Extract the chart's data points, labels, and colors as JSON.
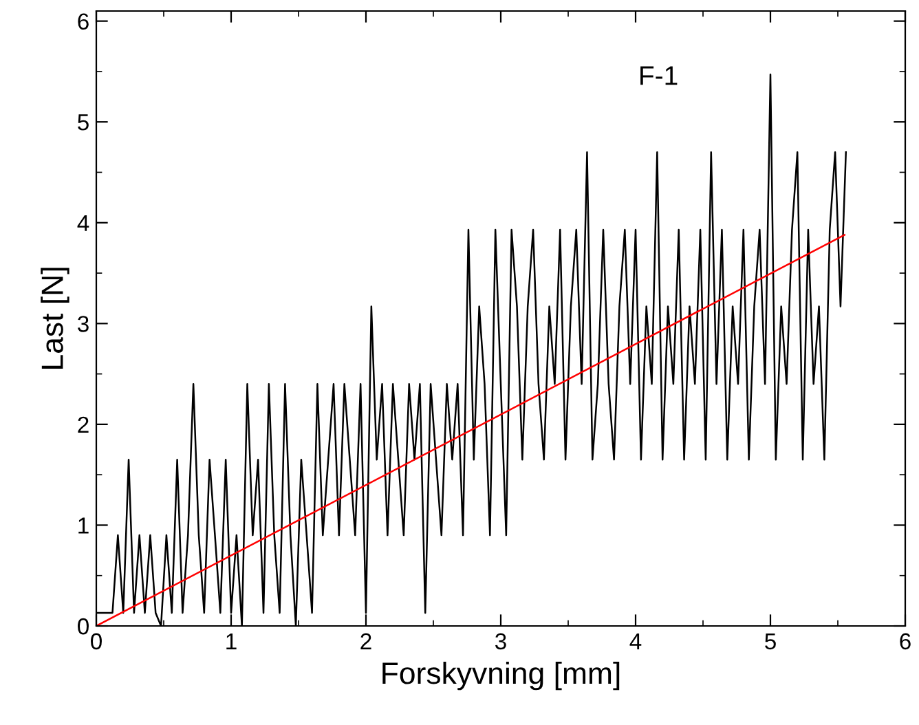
{
  "chart_data": {
    "type": "line",
    "xlabel": "Forskyvning [mm]",
    "ylabel": "Last [N]",
    "annotations": [
      "F-1"
    ],
    "xlim": [
      0,
      6
    ],
    "ylim": [
      0,
      6.1
    ],
    "xticks": [
      0,
      1,
      2,
      3,
      4,
      5,
      6
    ],
    "yticks": [
      0,
      1,
      2,
      3,
      4,
      5,
      6
    ],
    "grid": false,
    "legend": false,
    "marker": "none",
    "line_style": "solid",
    "series": [
      {
        "color": "#000000",
        "x": [
          0,
          0.04,
          0.08,
          0.12,
          0.16,
          0.2,
          0.24,
          0.28,
          0.32,
          0.36,
          0.4,
          0.44,
          0.48,
          0.52,
          0.56,
          0.6,
          0.64,
          0.68,
          0.72,
          0.76,
          0.8,
          0.84,
          0.88,
          0.92,
          0.96,
          1.0,
          1.04,
          1.08,
          1.12,
          1.16,
          1.2,
          1.24,
          1.28,
          1.32,
          1.36,
          1.4,
          1.44,
          1.48,
          1.52,
          1.56,
          1.6,
          1.64,
          1.68,
          1.72,
          1.76,
          1.8,
          1.84,
          1.88,
          1.92,
          1.96,
          2.0,
          2.04,
          2.08,
          2.12,
          2.16,
          2.2,
          2.24,
          2.28,
          2.32,
          2.36,
          2.4,
          2.44,
          2.48,
          2.52,
          2.56,
          2.6,
          2.64,
          2.68,
          2.72,
          2.76,
          2.8,
          2.84,
          2.88,
          2.92,
          2.96,
          3.0,
          3.04,
          3.08,
          3.12,
          3.16,
          3.2,
          3.24,
          3.28,
          3.32,
          3.36,
          3.4,
          3.44,
          3.48,
          3.52,
          3.56,
          3.6,
          3.64,
          3.68,
          3.72,
          3.76,
          3.8,
          3.84,
          3.88,
          3.92,
          3.96,
          4.0,
          4.04,
          4.08,
          4.12,
          4.16,
          4.2,
          4.24,
          4.28,
          4.32,
          4.36,
          4.4,
          4.44,
          4.48,
          4.52,
          4.56,
          4.6,
          4.64,
          4.68,
          4.72,
          4.76,
          4.8,
          4.84,
          4.88,
          4.92,
          4.96,
          5.0,
          5.04,
          5.08,
          5.12,
          5.16,
          5.2,
          5.24,
          5.28,
          5.32,
          5.36,
          5.4,
          5.44,
          5.48,
          5.52,
          5.56
        ],
        "values": [
          0.13,
          0.13,
          0.13,
          0.13,
          0.9,
          0.13,
          1.65,
          0.13,
          0.9,
          0.13,
          0.9,
          0.13,
          0,
          0.9,
          0.13,
          1.65,
          0.13,
          0.9,
          2.4,
          0.9,
          0.13,
          1.65,
          0.9,
          0.13,
          1.65,
          0.13,
          0.9,
          0,
          2.4,
          0.9,
          1.65,
          0.13,
          2.4,
          0.9,
          0.13,
          2.4,
          0.9,
          0,
          1.65,
          0.9,
          0.13,
          2.4,
          0.9,
          1.65,
          2.4,
          0.9,
          2.4,
          1.65,
          0.9,
          2.4,
          0.13,
          3.17,
          1.65,
          2.4,
          0.9,
          2.4,
          1.65,
          0.9,
          2.4,
          1.65,
          2.4,
          0.13,
          2.4,
          1.65,
          0.9,
          2.4,
          1.65,
          2.4,
          0.9,
          3.93,
          1.65,
          3.17,
          2.4,
          0.9,
          3.93,
          2.4,
          0.9,
          3.93,
          3.17,
          1.65,
          3.17,
          3.93,
          2.4,
          1.65,
          3.17,
          2.4,
          3.93,
          1.65,
          3.17,
          3.93,
          2.4,
          4.7,
          1.65,
          2.4,
          3.93,
          2.4,
          1.65,
          3.17,
          3.93,
          2.4,
          3.93,
          1.65,
          3.17,
          2.4,
          4.7,
          1.65,
          3.17,
          2.4,
          3.93,
          1.65,
          3.17,
          2.4,
          3.93,
          1.65,
          4.7,
          2.4,
          3.93,
          1.65,
          3.17,
          2.4,
          3.93,
          1.65,
          3.17,
          3.93,
          2.4,
          5.47,
          1.65,
          3.17,
          2.4,
          3.93,
          4.7,
          1.65,
          3.93,
          2.4,
          3.17,
          1.65,
          3.93,
          4.7,
          3.17,
          4.7
        ]
      },
      {
        "color": "#ff0000",
        "x": [
          0,
          5.55
        ],
        "values": [
          0,
          3.88
        ]
      }
    ]
  }
}
